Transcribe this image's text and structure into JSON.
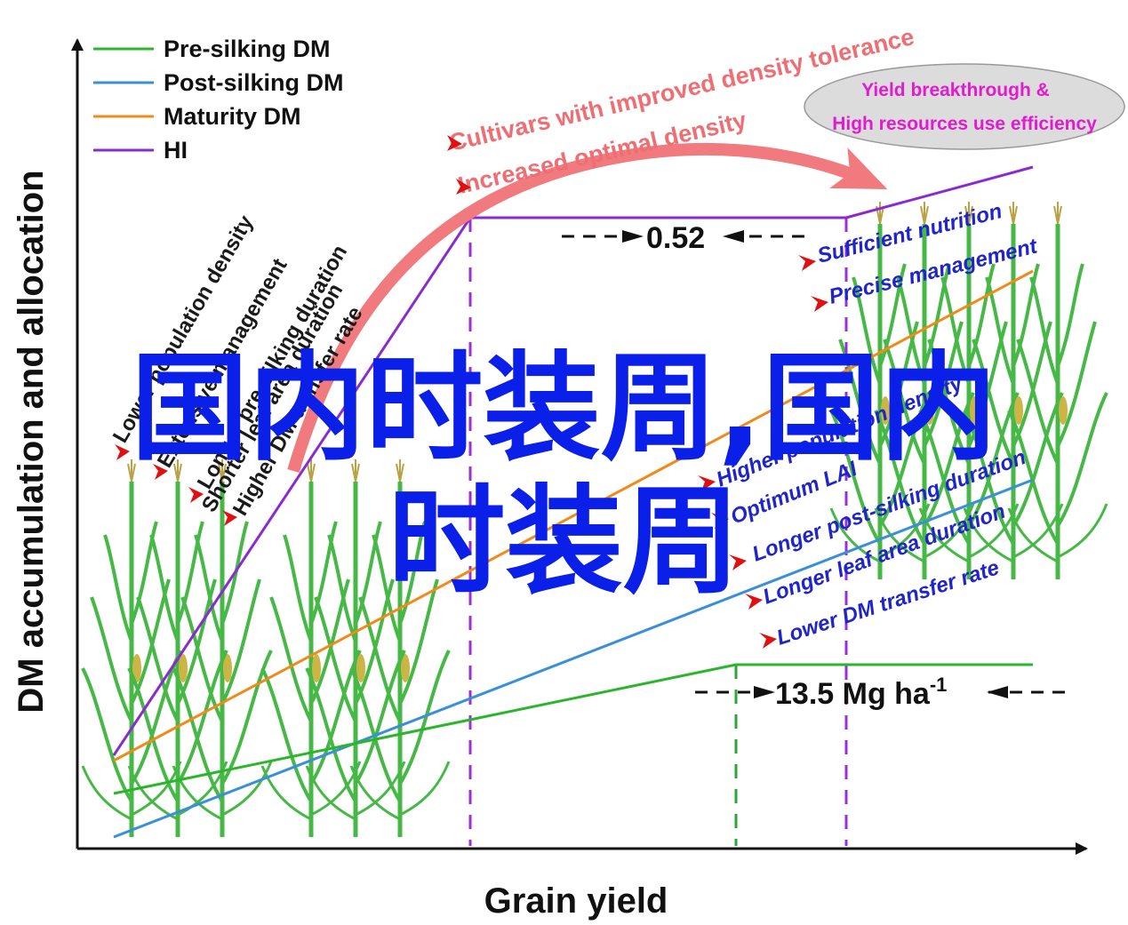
{
  "axes": {
    "x_label": "Grain yield",
    "y_label": "DM accumulation and allocation"
  },
  "legend": [
    {
      "label": "Pre-silking DM",
      "color": "#2bb52b"
    },
    {
      "label": "Post-silking DM",
      "color": "#3a8fd6"
    },
    {
      "label": "Maturity DM",
      "color": "#f08a1a"
    },
    {
      "label": "HI",
      "color": "#8a2bd0"
    }
  ],
  "left_factors": [
    "Lower population density",
    "Extensive management",
    "Longer pre-silking duration",
    "Shorter leaf area duration",
    "Higher DM transfer rate"
  ],
  "top_labels": {
    "improved": "Cultivars with improved density tolerance",
    "increased": "Increased optimal density"
  },
  "ellipse": {
    "line1": "Yield breakthrough &",
    "line2": "High resources use efficiency"
  },
  "right_factors": [
    "Sufficient nutrition",
    "Precise management",
    "Higher population density",
    "Optimum LAI",
    "Longer post-silking duration",
    "Longer leaf area duration",
    "Lower DM transfer rate"
  ],
  "annotations": {
    "hi_value": "0.52",
    "dm_value": "13.5 Mg ha",
    "dm_sup": "-1"
  },
  "colors": {
    "arrow_red": "#f07a7d",
    "overlay_blue": "#0a1fe8",
    "plant_green": "#3db53d",
    "dashed_purple": "#9a30d6",
    "dashed_green": "#2ea43a"
  },
  "overlay": {
    "line1": "国内时装周,国内",
    "line2": "时装周"
  }
}
